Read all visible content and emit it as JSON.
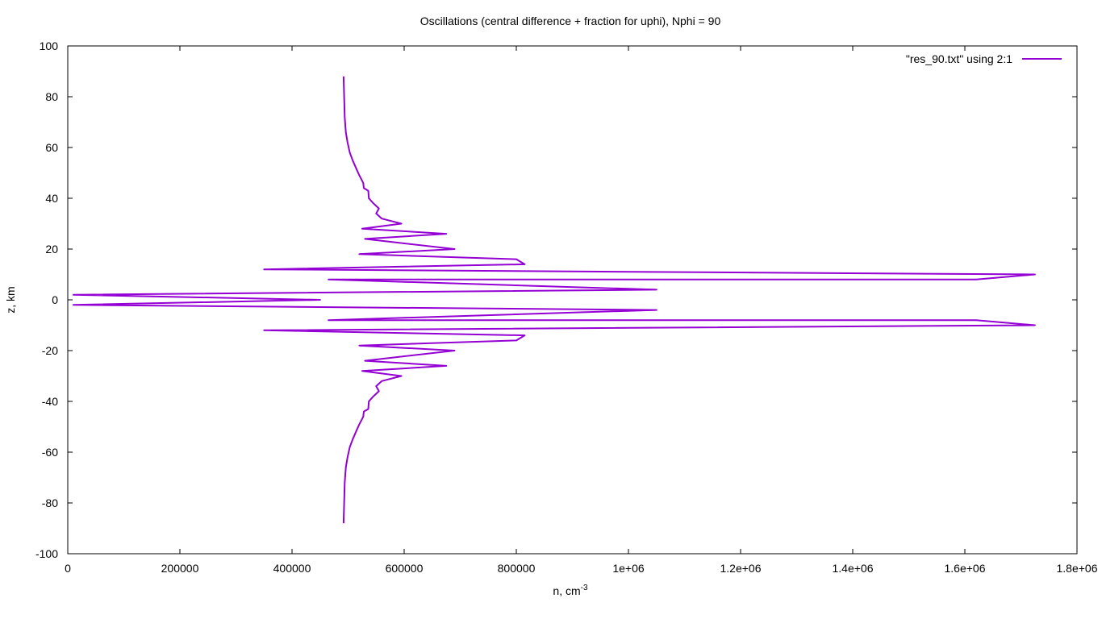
{
  "chart_data": {
    "type": "line",
    "title": "Oscillations (central difference + fraction for uphi), Nphi = 90",
    "xlabel": {
      "base": "n, cm",
      "sup": "-3"
    },
    "ylabel": "z, km",
    "xlim": [
      0,
      1800000
    ],
    "ylim": [
      -100,
      100
    ],
    "x_ticks": [
      0,
      200000,
      400000,
      600000,
      800000,
      1000000,
      1200000,
      1400000,
      1600000,
      1800000
    ],
    "x_tick_labels": [
      "0",
      "200000",
      "400000",
      "600000",
      "800000",
      "1e+06",
      "1.2e+06",
      "1.4e+06",
      "1.6e+06",
      "1.8e+06"
    ],
    "y_ticks": [
      -100,
      -80,
      -60,
      -40,
      -20,
      0,
      20,
      40,
      60,
      80,
      100
    ],
    "y_tick_labels": [
      "-100",
      "-80",
      "-60",
      "-40",
      "-20",
      "0",
      "20",
      "40",
      "60",
      "80",
      "100"
    ],
    "grid": false,
    "legend_position": "top-right",
    "series": [
      {
        "name": "\"res_90.txt\" using 2:1",
        "color": "#9400d3",
        "x": [
          492000,
          493000,
          494000,
          496000,
          499000,
          503000,
          508000,
          514000,
          520000,
          527000,
          528000,
          536000,
          537000,
          545000,
          555000,
          550000,
          560000,
          595000,
          525000,
          675000,
          530000,
          690000,
          520000,
          800000,
          815000,
          350000,
          1725000,
          1620000,
          465000,
          1050000,
          10000,
          450000,
          10000,
          1050000,
          465000,
          1620000,
          1725000,
          350000,
          815000,
          800000,
          520000,
          690000,
          530000,
          675000,
          525000,
          595000,
          560000,
          550000,
          555000,
          545000,
          537000,
          536000,
          528000,
          527000,
          520000,
          514000,
          508000,
          503000,
          499000,
          496000,
          494000,
          493000,
          492000
        ],
        "y": [
          88,
          80,
          72,
          66,
          62,
          58,
          55,
          52,
          49,
          46,
          44,
          43,
          40,
          38,
          36,
          34,
          32,
          30,
          28,
          26,
          24,
          20,
          18,
          16,
          14,
          12,
          10,
          8,
          8,
          4,
          2,
          0,
          -2,
          -4,
          -8,
          -8,
          -10,
          -12,
          -14,
          -16,
          -18,
          -20,
          -24,
          -26,
          -28,
          -30,
          -32,
          -34,
          -36,
          -38,
          -40,
          -43,
          -44,
          -46,
          -49,
          -52,
          -55,
          -58,
          -62,
          -66,
          -72,
          -80,
          -88
        ]
      }
    ]
  }
}
